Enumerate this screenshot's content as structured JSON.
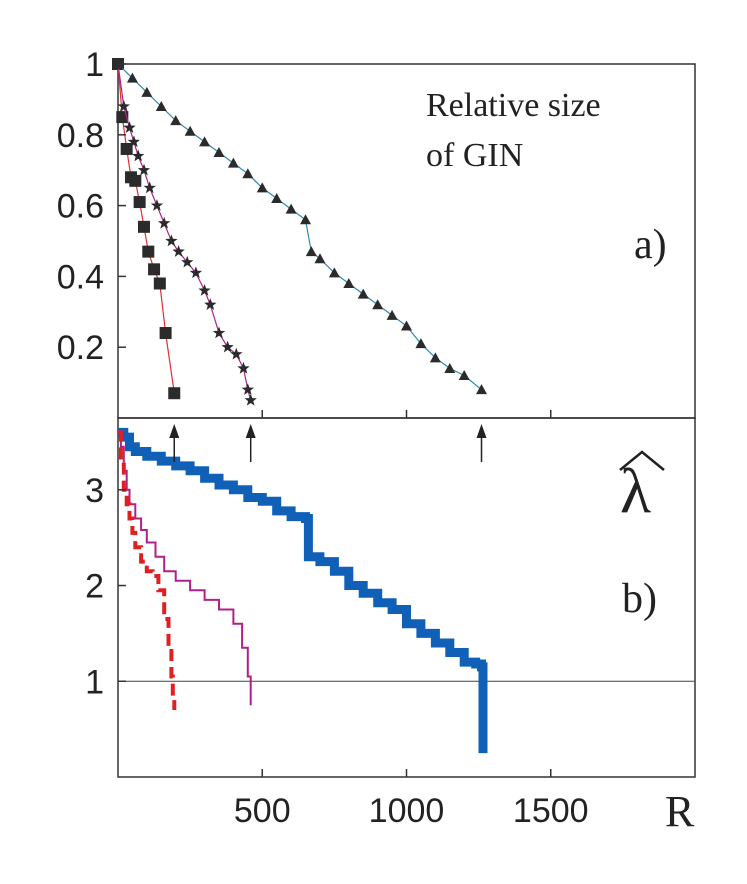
{
  "chart_data": [
    {
      "type": "scatter",
      "panel_label": "a)",
      "annotation_lines": [
        "Relative size",
        "of GIN"
      ],
      "xlim": [
        0,
        2000
      ],
      "ylim": [
        0,
        1
      ],
      "yticks": [
        {
          "value": 0.2,
          "label": "0.2"
        },
        {
          "value": 0.4,
          "label": "0.4"
        },
        {
          "value": 0.6,
          "label": "0.6"
        },
        {
          "value": 0.8,
          "label": "0.8"
        },
        {
          "value": 1.0,
          "label": "1"
        }
      ],
      "series": [
        {
          "name": "squares",
          "marker": "square",
          "line_color": "#e03030",
          "x": [
            0,
            15,
            30,
            45,
            60,
            75,
            90,
            105,
            125,
            145,
            165,
            195
          ],
          "y": [
            1.0,
            0.85,
            0.76,
            0.68,
            0.67,
            0.61,
            0.54,
            0.47,
            0.42,
            0.38,
            0.24,
            0.07
          ]
        },
        {
          "name": "stars",
          "marker": "star",
          "line_color": "#b0208a",
          "x": [
            0,
            20,
            40,
            55,
            70,
            90,
            110,
            135,
            160,
            185,
            210,
            240,
            270,
            300,
            320,
            350,
            380,
            410,
            435,
            450,
            460
          ],
          "y": [
            1.0,
            0.88,
            0.82,
            0.78,
            0.74,
            0.7,
            0.65,
            0.6,
            0.55,
            0.5,
            0.47,
            0.44,
            0.41,
            0.36,
            0.32,
            0.24,
            0.2,
            0.18,
            0.14,
            0.08,
            0.05
          ]
        },
        {
          "name": "triangles",
          "marker": "triangle",
          "line_color": "#2a8ab0",
          "x": [
            0,
            50,
            100,
            150,
            200,
            250,
            300,
            350,
            400,
            450,
            500,
            550,
            600,
            650,
            670,
            700,
            750,
            800,
            850,
            900,
            950,
            1000,
            1050,
            1100,
            1150,
            1200,
            1260
          ],
          "y": [
            1.0,
            0.96,
            0.92,
            0.88,
            0.84,
            0.81,
            0.78,
            0.75,
            0.72,
            0.69,
            0.65,
            0.62,
            0.59,
            0.56,
            0.47,
            0.45,
            0.41,
            0.38,
            0.35,
            0.32,
            0.29,
            0.26,
            0.21,
            0.17,
            0.14,
            0.12,
            0.08
          ]
        }
      ],
      "arrows_x": [
        195,
        460,
        1260
      ]
    },
    {
      "type": "line",
      "panel_label": "b)",
      "ylabel": "λ",
      "xlabel": "R",
      "xlim": [
        0,
        2000
      ],
      "ylim": [
        0,
        3.75
      ],
      "xticks": [
        {
          "value": 500,
          "label": "500"
        },
        {
          "value": 1000,
          "label": "1000"
        },
        {
          "value": 1500,
          "label": "1500"
        }
      ],
      "yticks": [
        {
          "value": 1,
          "label": "1"
        },
        {
          "value": 2,
          "label": "2"
        },
        {
          "value": 3,
          "label": "3"
        }
      ],
      "reference_line_y": 1,
      "series": [
        {
          "name": "thick",
          "color": "#1060b8",
          "style": "solid-thick",
          "x": [
            0,
            20,
            40,
            60,
            100,
            150,
            200,
            250,
            300,
            350,
            400,
            450,
            500,
            550,
            600,
            650,
            660,
            700,
            750,
            800,
            850,
            900,
            950,
            1000,
            1050,
            1100,
            1150,
            1200,
            1240,
            1260,
            1265
          ],
          "y": [
            3.6,
            3.55,
            3.45,
            3.4,
            3.35,
            3.3,
            3.25,
            3.2,
            3.12,
            3.05,
            3.0,
            2.92,
            2.88,
            2.78,
            2.72,
            2.7,
            2.3,
            2.25,
            2.15,
            2.0,
            1.92,
            1.82,
            1.75,
            1.6,
            1.5,
            1.4,
            1.3,
            1.2,
            1.18,
            1.15,
            0.25
          ]
        },
        {
          "name": "thin",
          "color": "#b0208a",
          "style": "solid-thin",
          "x": [
            0,
            10,
            20,
            30,
            40,
            60,
            80,
            100,
            130,
            160,
            200,
            250,
            300,
            350,
            400,
            430,
            450,
            460
          ],
          "y": [
            3.6,
            3.45,
            3.2,
            3.0,
            2.85,
            2.7,
            2.58,
            2.45,
            2.3,
            2.15,
            2.05,
            1.95,
            1.85,
            1.75,
            1.6,
            1.35,
            1.05,
            0.75
          ]
        },
        {
          "name": "dashed",
          "color": "#e02020",
          "style": "dashed",
          "x": [
            0,
            10,
            20,
            30,
            40,
            50,
            60,
            80,
            100,
            120,
            140,
            160,
            175,
            185,
            190,
            195
          ],
          "y": [
            3.6,
            3.3,
            3.0,
            2.85,
            2.7,
            2.55,
            2.4,
            2.25,
            2.15,
            2.1,
            1.95,
            1.65,
            1.35,
            1.05,
            0.85,
            0.7
          ]
        }
      ]
    }
  ]
}
